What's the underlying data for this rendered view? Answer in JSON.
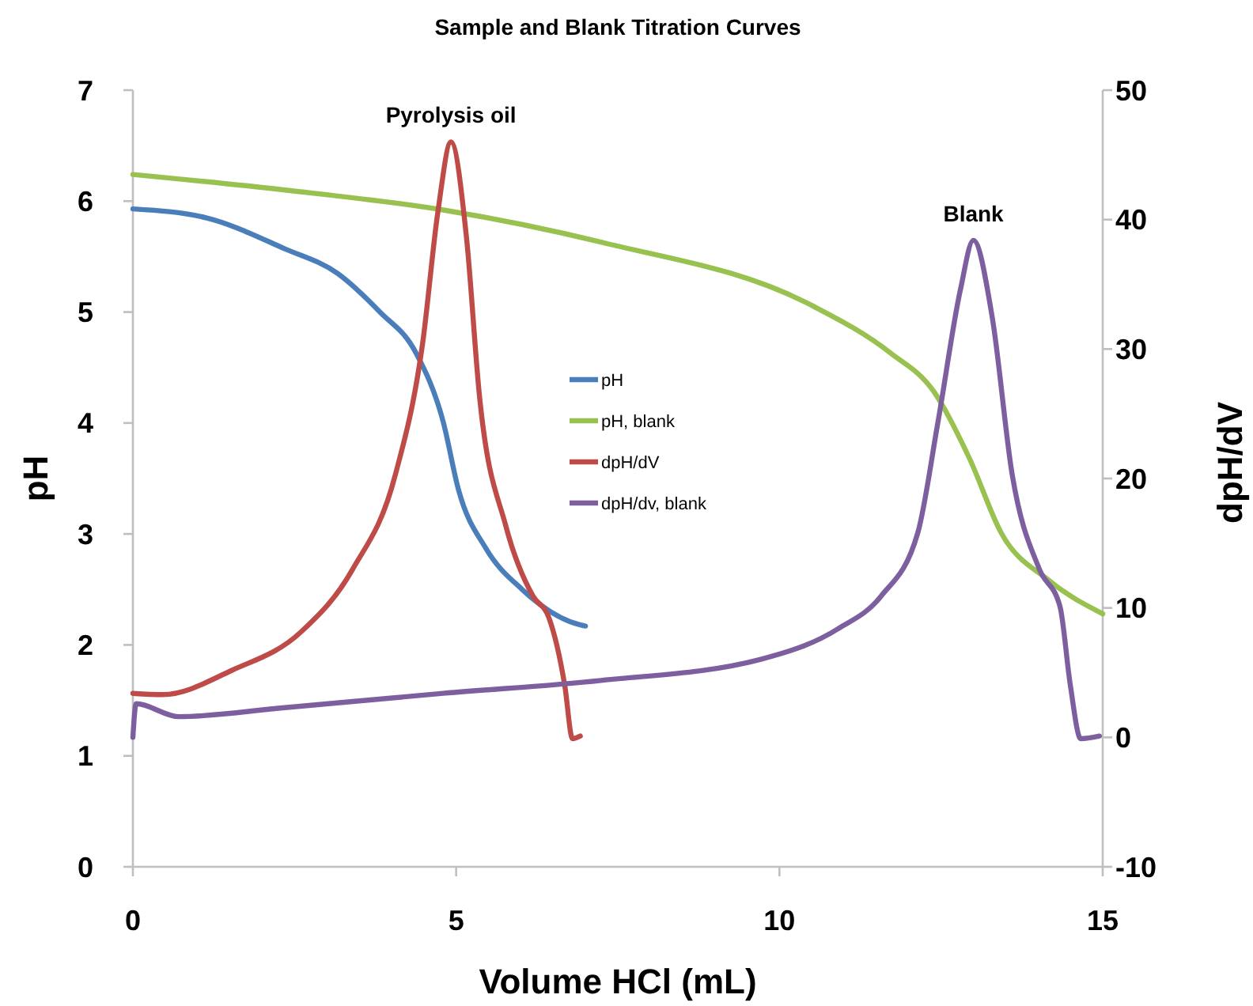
{
  "chart_data": {
    "type": "line",
    "title": "Sample and Blank Titration Curves",
    "xlabel": "Volume HCl (mL)",
    "ylabel": "pH",
    "y2label": "dpH/dV",
    "xlim": [
      0,
      15
    ],
    "xticks": [
      0,
      5,
      10,
      15
    ],
    "ylim": [
      0,
      7
    ],
    "yticks": [
      0,
      1,
      2,
      3,
      4,
      5,
      6,
      7
    ],
    "y2lim": [
      -10,
      50
    ],
    "y2ticks": [
      -10,
      0,
      10,
      20,
      30,
      40,
      50
    ],
    "grid": false,
    "legend": "center",
    "marker": "none",
    "line_style": "solid",
    "annotations": [
      "Pyrolysis oil",
      "Blank"
    ],
    "series": [
      {
        "name": "pH",
        "color": "#4a7ebb",
        "x": [
          0,
          1.13,
          2.35,
          3.16,
          3.82,
          4.38,
          4.8,
          5.04,
          5.46,
          6.02,
          6.92,
          7
        ],
        "values": [
          5.93,
          5.85,
          5.57,
          5.35,
          5.0,
          4.63,
          4.01,
          3.39,
          2.87,
          2.5,
          2.18,
          2.17
        ]
      },
      {
        "name": "pH, blank",
        "color": "#98c14f",
        "x": [
          0,
          2.35,
          4.8,
          7.24,
          10.5,
          11.72,
          12.38,
          12.94,
          13.43,
          14.17,
          15
        ],
        "values": [
          6.24,
          6.1,
          5.92,
          5.63,
          5.06,
          4.63,
          4.29,
          3.68,
          3.01,
          2.58,
          2.28
        ]
      },
      {
        "name": "dpH/dV",
        "color": "#be4b48",
        "axis": "y2",
        "x": [
          0,
          0.46,
          1.54,
          2.59,
          3.4,
          4.06,
          4.48,
          4.72,
          4.92,
          5.16,
          5.36,
          5.77,
          6.19,
          6.43,
          6.68,
          6.8,
          6.92
        ],
        "values": [
          3.4,
          3.3,
          5.2,
          8.1,
          13,
          20.3,
          30.4,
          40.7,
          46,
          38.6,
          26.4,
          16.3,
          10.9,
          9.3,
          4,
          -0.1,
          0.1
        ]
      },
      {
        "name": "dpH/dv, blank",
        "color": "#7d5fa0",
        "axis": "y2",
        "x": [
          0,
          0.05,
          0.71,
          2.35,
          4.8,
          7.24,
          9.69,
          10.91,
          11.57,
          12.14,
          12.45,
          12.8,
          13.0,
          13.29,
          13.6,
          14.02,
          14.34,
          14.5,
          14.66,
          14.95
        ],
        "values": [
          0,
          2.6,
          1.6,
          2.3,
          3.4,
          4.4,
          6.0,
          8.4,
          10.9,
          15.8,
          24.3,
          34.6,
          38.4,
          32.5,
          20.3,
          13,
          10.1,
          4,
          -0.1,
          0.1
        ]
      }
    ]
  }
}
